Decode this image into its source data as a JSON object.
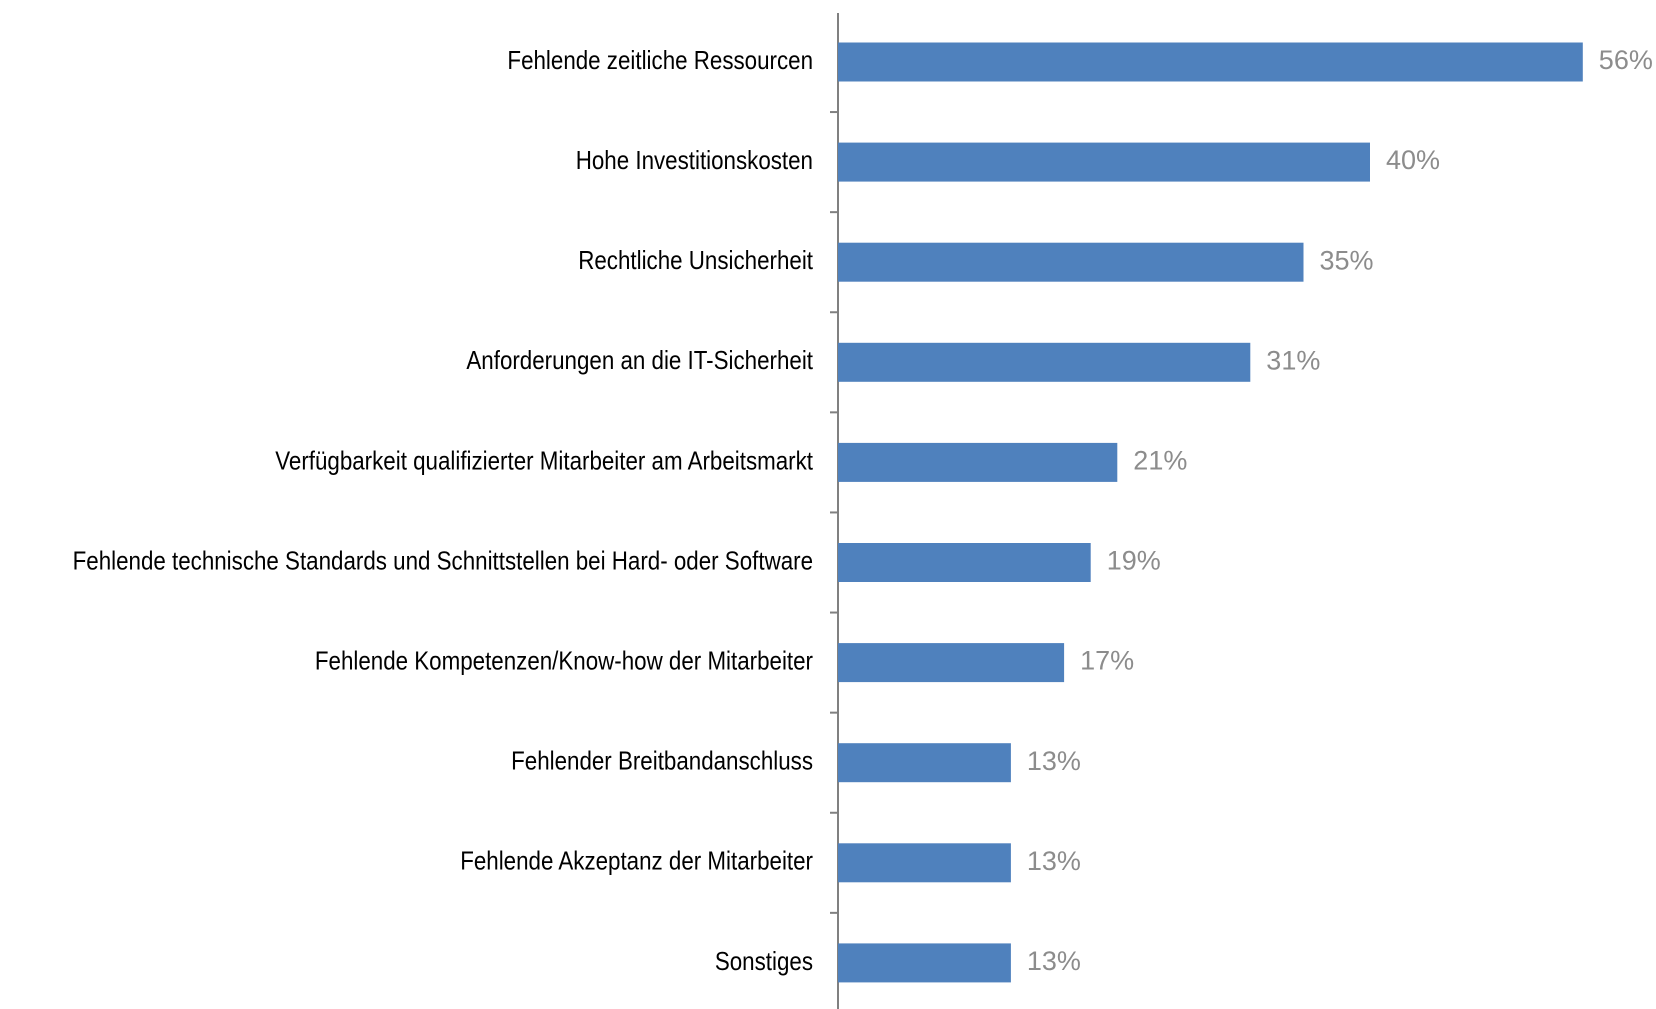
{
  "chart_data": {
    "type": "hbar",
    "categories": [
      "Fehlende zeitliche Ressourcen",
      "Hohe Investitionskosten",
      "Rechtliche Unsicherheit",
      "Anforderungen an die IT-Sicherheit",
      "Verfügbarkeit qualifizierter Mitarbeiter am Arbeitsmarkt",
      "Fehlende technische Standards und Schnittstellen bei Hard- oder Software",
      "Fehlende Kompetenzen/Know-how der Mitarbeiter",
      "Fehlender Breitbandanschluss",
      "Fehlende Akzeptanz der Mitarbeiter",
      "Sonstiges"
    ],
    "values": [
      56,
      40,
      35,
      31,
      21,
      19,
      17,
      13,
      13,
      13
    ],
    "value_labels": [
      "56%",
      "40%",
      "35%",
      "31%",
      "21%",
      "19%",
      "17%",
      "13%",
      "13%",
      "13%"
    ],
    "color": "#4f81bd"
  }
}
